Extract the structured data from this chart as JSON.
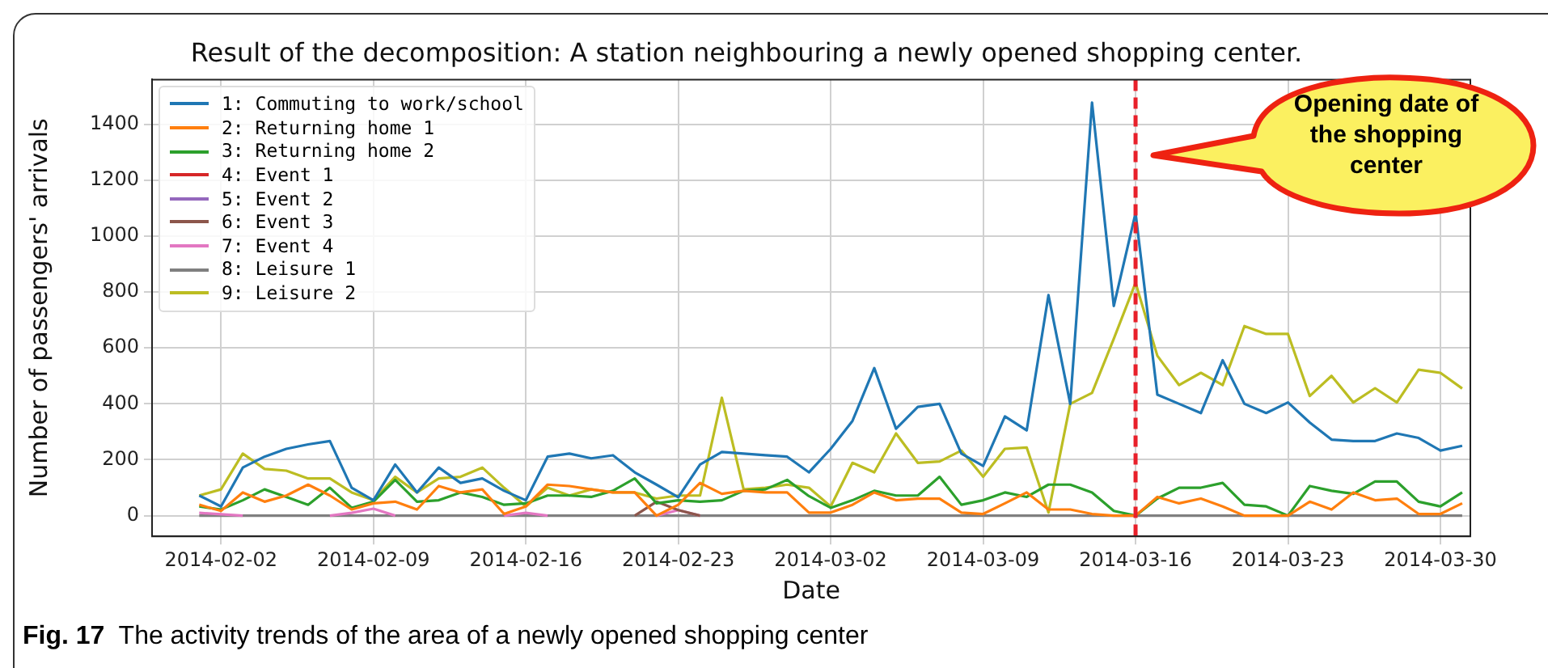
{
  "chart_data": {
    "type": "line",
    "title": "Result of the decomposition: A station neighbouring a newly opened shopping center.",
    "xlabel": "Date",
    "ylabel": "Number of passengers' arrivals",
    "x": [
      "2014-02-01",
      "2014-02-02",
      "2014-02-03",
      "2014-02-04",
      "2014-02-05",
      "2014-02-06",
      "2014-02-07",
      "2014-02-08",
      "2014-02-09",
      "2014-02-10",
      "2014-02-11",
      "2014-02-12",
      "2014-02-13",
      "2014-02-14",
      "2014-02-15",
      "2014-02-16",
      "2014-02-17",
      "2014-02-18",
      "2014-02-19",
      "2014-02-20",
      "2014-02-21",
      "2014-02-22",
      "2014-02-23",
      "2014-02-24",
      "2014-02-25",
      "2014-02-26",
      "2014-02-27",
      "2014-02-28",
      "2014-03-01",
      "2014-03-02",
      "2014-03-03",
      "2014-03-04",
      "2014-03-05",
      "2014-03-06",
      "2014-03-07",
      "2014-03-08",
      "2014-03-09",
      "2014-03-10",
      "2014-03-11",
      "2014-03-12",
      "2014-03-13",
      "2014-03-14",
      "2014-03-15",
      "2014-03-16",
      "2014-03-17",
      "2014-03-18",
      "2014-03-19",
      "2014-03-20",
      "2014-03-21",
      "2014-03-22",
      "2014-03-23",
      "2014-03-24",
      "2014-03-25",
      "2014-03-26",
      "2014-03-27",
      "2014-03-28",
      "2014-03-29",
      "2014-03-30",
      "2014-03-31"
    ],
    "series": [
      {
        "name": "1: Commuting to work/school",
        "color": "#1f77b4",
        "values": [
          72,
          33,
          172,
          211,
          239,
          255,
          267,
          100,
          55,
          183,
          83,
          172,
          117,
          133,
          89,
          55,
          211,
          222,
          205,
          216,
          155,
          111,
          66,
          183,
          228,
          222,
          216,
          211,
          155,
          239,
          339,
          528,
          311,
          389,
          400,
          222,
          178,
          355,
          305,
          789,
          400,
          1478,
          750,
          1083,
          433,
          400,
          367,
          556,
          400,
          367,
          405,
          333,
          272,
          267,
          267,
          294,
          278,
          233,
          250
        ]
      },
      {
        "name": "2: Returning home 1",
        "color": "#ff7f0e",
        "values": [
          39,
          17,
          83,
          50,
          72,
          111,
          72,
          22,
          44,
          50,
          22,
          106,
          83,
          94,
          6,
          33,
          111,
          106,
          94,
          83,
          83,
          0,
          39,
          117,
          78,
          89,
          83,
          83,
          11,
          11,
          39,
          83,
          55,
          61,
          61,
          11,
          6,
          44,
          83,
          22,
          22,
          6,
          0,
          0,
          67,
          44,
          61,
          33,
          0,
          0,
          0,
          50,
          22,
          83,
          55,
          61,
          6,
          6,
          44
        ]
      },
      {
        "name": "3: Returning home 2",
        "color": "#2ca02c",
        "values": [
          33,
          22,
          55,
          94,
          67,
          39,
          100,
          28,
          50,
          128,
          50,
          55,
          83,
          67,
          39,
          44,
          72,
          72,
          67,
          89,
          133,
          44,
          55,
          50,
          55,
          89,
          94,
          128,
          70,
          28,
          55,
          89,
          72,
          72,
          139,
          39,
          55,
          83,
          67,
          111,
          111,
          83,
          17,
          0,
          61,
          100,
          100,
          117,
          39,
          33,
          0,
          106,
          89,
          78,
          122,
          122,
          50,
          33,
          83
        ]
      },
      {
        "name": "4: Event 1",
        "color": "#d62728",
        "values": [
          null,
          null,
          null,
          null,
          null,
          null,
          null,
          null,
          null,
          null,
          null,
          null,
          null,
          null,
          null,
          null,
          null,
          null,
          null,
          null,
          null,
          null,
          null,
          null,
          null,
          null,
          null,
          null,
          null,
          null,
          null,
          null,
          null,
          null,
          null,
          null,
          null,
          null,
          null,
          null,
          null,
          null,
          null,
          null,
          null,
          null,
          null,
          null,
          null,
          null,
          null,
          null,
          null,
          null,
          null,
          null,
          null,
          null,
          null
        ]
      },
      {
        "name": "5: Event 2",
        "color": "#9467bd",
        "values": [
          null,
          null,
          null,
          null,
          null,
          null,
          null,
          null,
          null,
          null,
          null,
          null,
          null,
          null,
          null,
          null,
          null,
          null,
          null,
          null,
          null,
          null,
          null,
          null,
          null,
          null,
          null,
          null,
          null,
          null,
          null,
          null,
          null,
          null,
          null,
          null,
          null,
          null,
          null,
          null,
          null,
          null,
          null,
          null,
          null,
          null,
          null,
          null,
          null,
          null,
          null,
          null,
          null,
          null,
          null,
          null,
          null,
          null,
          null
        ]
      },
      {
        "name": "6: Event 3",
        "color": "#8c564b",
        "values": [
          null,
          null,
          null,
          null,
          null,
          null,
          null,
          null,
          null,
          null,
          null,
          null,
          null,
          null,
          null,
          null,
          null,
          null,
          null,
          null,
          0,
          50,
          20,
          0,
          null,
          null,
          null,
          null,
          null,
          null,
          null,
          null,
          null,
          null,
          null,
          null,
          null,
          null,
          null,
          null,
          null,
          null,
          null,
          null,
          null,
          null,
          null,
          null,
          null,
          null,
          null,
          null,
          null,
          null,
          null,
          null,
          null,
          null,
          null
        ]
      },
      {
        "name": "7: Event 4",
        "color": "#e377c2",
        "values": [
          10,
          5,
          0,
          null,
          null,
          null,
          0,
          10,
          25,
          0,
          null,
          null,
          null,
          null,
          0,
          10,
          0,
          null,
          null,
          null,
          null,
          0,
          20,
          0,
          null,
          null,
          null,
          null,
          null,
          null,
          null,
          null,
          null,
          null,
          null,
          null,
          null,
          null,
          null,
          null,
          null,
          null,
          null,
          null,
          null,
          null,
          null,
          null,
          null,
          null,
          null,
          null,
          null,
          null,
          null,
          null,
          null,
          null,
          null
        ]
      },
      {
        "name": "8: Leisure 1",
        "color": "#7f7f7f",
        "values": [
          0,
          0,
          0,
          0,
          0,
          0,
          0,
          0,
          0,
          0,
          0,
          0,
          0,
          0,
          0,
          0,
          0,
          0,
          0,
          0,
          0,
          0,
          0,
          0,
          0,
          0,
          0,
          0,
          0,
          0,
          0,
          0,
          0,
          0,
          0,
          0,
          0,
          0,
          0,
          0,
          0,
          0,
          0,
          0,
          0,
          0,
          0,
          0,
          0,
          0,
          0,
          0,
          0,
          0,
          0,
          0,
          0,
          0,
          0
        ]
      },
      {
        "name": "9: Leisure 2",
        "color": "#bcbd22",
        "values": [
          72,
          94,
          222,
          167,
          161,
          133,
          133,
          83,
          55,
          139,
          83,
          133,
          139,
          172,
          100,
          33,
          100,
          72,
          94,
          83,
          83,
          61,
          72,
          72,
          422,
          94,
          100,
          111,
          100,
          33,
          189,
          155,
          294,
          189,
          194,
          233,
          139,
          239,
          244,
          11,
          400,
          439,
          633,
          833,
          572,
          467,
          511,
          467,
          678,
          650,
          650,
          428,
          500,
          405,
          456,
          405,
          522,
          511,
          455
        ]
      }
    ],
    "xlim": [
      "2014-01-29T20:00",
      "2014-03-31T09:00"
    ],
    "xticks": [
      "2014-02-02",
      "2014-02-09",
      "2014-02-16",
      "2014-02-23",
      "2014-03-02",
      "2014-03-09",
      "2014-03-16",
      "2014-03-23",
      "2014-03-30"
    ],
    "ylim": [
      -74,
      1560
    ],
    "yticks": [
      0,
      200,
      400,
      600,
      800,
      1000,
      1200,
      1400
    ],
    "grid": true,
    "legend": "top left",
    "ref_lines": [
      {
        "axis": "x",
        "value": "2014-03-16",
        "color": "#e8202a",
        "line_style": "dashed"
      }
    ],
    "annotations": [
      "Opening date of the shopping center",
      "Fig. 17",
      "The activity trends of the area of a newly opened shopping center"
    ]
  }
}
